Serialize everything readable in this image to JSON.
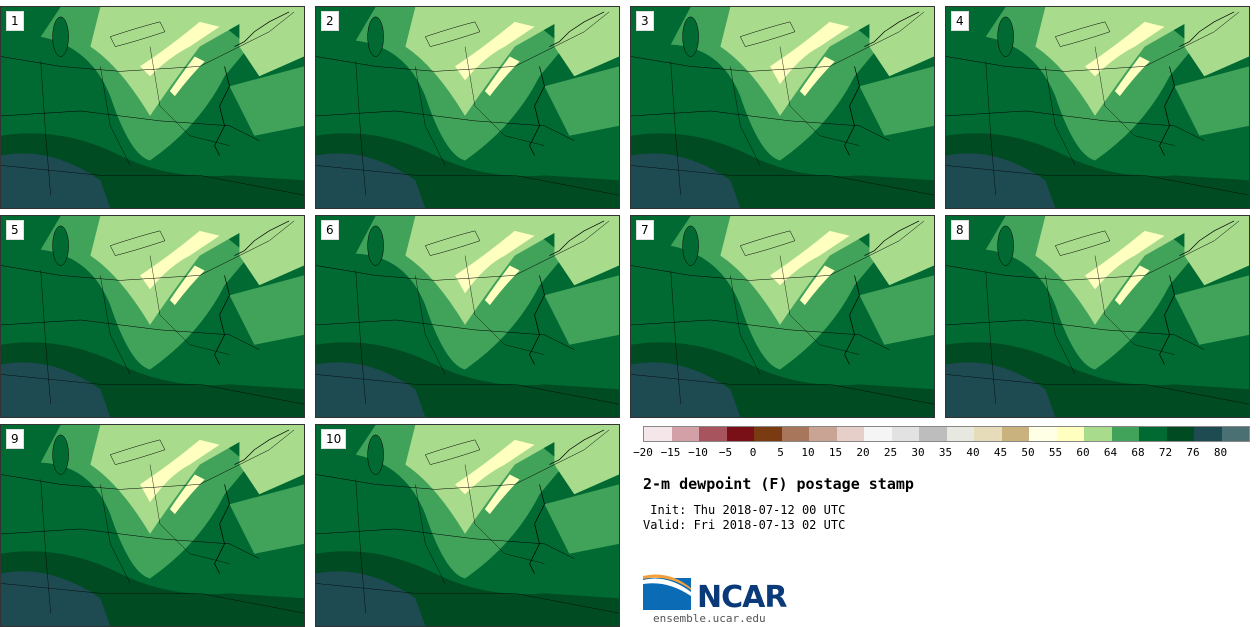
{
  "panels": [
    {
      "label": "1"
    },
    {
      "label": "2"
    },
    {
      "label": "3"
    },
    {
      "label": "4"
    },
    {
      "label": "5"
    },
    {
      "label": "6"
    },
    {
      "label": "7"
    },
    {
      "label": "8"
    },
    {
      "label": "9"
    },
    {
      "label": "10"
    }
  ],
  "map_colors": {
    "dark_teal": "#1e4a52",
    "darkest_green": "#004b22",
    "dark_green": "#006a32",
    "medium_green": "#41a35a",
    "light_green": "#a8dc8c",
    "pale_yellow": "#ffffc0",
    "water": "#1e4a52"
  },
  "colorbar": {
    "colors": [
      "#f5e6ea",
      "#d3a0a8",
      "#a8545e",
      "#7a1017",
      "#7a3a12",
      "#a8765a",
      "#c9a494",
      "#e6cfc8",
      "#f5f5f5",
      "#e2e2e2",
      "#bdbdbd",
      "#e7e8e0",
      "#e6dcba",
      "#c9b27d",
      "#ffffe6",
      "#ffffc0",
      "#a8dc8c",
      "#41a35a",
      "#006a32",
      "#004b22",
      "#1e4a52",
      "#4a7074"
    ],
    "ticks": [
      "−20",
      "−15",
      "−10",
      "−5",
      "0",
      "5",
      "10",
      "15",
      "20",
      "25",
      "30",
      "35",
      "40",
      "45",
      "50",
      "55",
      "60",
      "64",
      "68",
      "72",
      "76",
      "80"
    ]
  },
  "title": "2-m dewpoint (F) postage stamp",
  "init": " Init: Thu 2018-07-12 00 UTC",
  "valid": "Valid: Fri 2018-07-13 02 UTC",
  "logo": {
    "text": "NCAR",
    "colors": {
      "blue": "#0b6bb5",
      "orange": "#f2a03d"
    }
  },
  "site": "ensemble.ucar.edu"
}
